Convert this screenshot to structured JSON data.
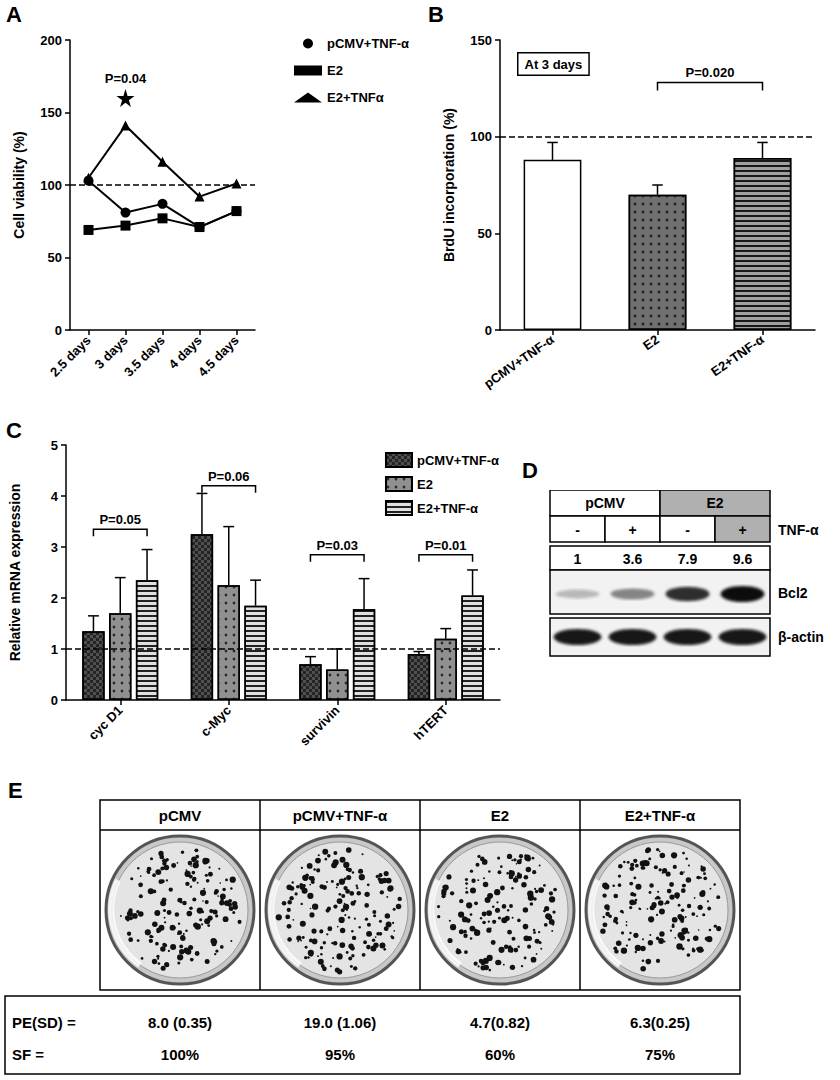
{
  "chart_data": [
    {
      "panel": "A",
      "type": "line",
      "categories": [
        "2.5 days",
        "3 days",
        "3.5 days",
        "4 days",
        "4.5 days"
      ],
      "ylabel": "Cell viability (%)",
      "ylim": [
        0,
        200
      ],
      "yticks": [
        0,
        50,
        100,
        150,
        200
      ],
      "hline": 100,
      "legend": "upper right",
      "series": [
        {
          "name": "pCMV+TNF-α",
          "color": "#000000",
          "marker": "circle",
          "values": [
            103,
            81,
            87,
            71,
            82
          ]
        },
        {
          "name": "E2",
          "color": "#000000",
          "marker": "square",
          "values": [
            69,
            72,
            77,
            71,
            82
          ]
        },
        {
          "name": "E2+TNFα",
          "color": "#000000",
          "marker": "triangle",
          "values": [
            105,
            141,
            116,
            92,
            101
          ]
        }
      ],
      "annotations": [
        {
          "text": "P=0.04",
          "x": "3 days",
          "y": 160,
          "marker": "star"
        }
      ]
    },
    {
      "panel": "B",
      "type": "bar",
      "categories": [
        "pCMV+TNF-α",
        "E2",
        "E2+TNF-α"
      ],
      "values": [
        88,
        70,
        89
      ],
      "errors": [
        9,
        5,
        8
      ],
      "colors": [
        "#ffffff",
        "#707070",
        "#a0a0a0"
      ],
      "ylabel": "BrdU incorporation (%)",
      "ylim": [
        0,
        150
      ],
      "yticks": [
        0,
        50,
        100,
        150
      ],
      "hline": 100,
      "annotations": [
        {
          "text": "At 3 days"
        }
      ],
      "brackets": [
        {
          "from": "E2",
          "to": "E2+TNF-α",
          "y": 128,
          "text": "P=0.020"
        }
      ]
    },
    {
      "panel": "C",
      "type": "bar",
      "categories": [
        "cyc D1",
        "c-Myc",
        "survivin",
        "hTERT"
      ],
      "ylabel": "Relative mRNA expression",
      "ylim": [
        0,
        5
      ],
      "yticks": [
        0,
        1,
        2,
        3,
        4,
        5
      ],
      "hline": 1,
      "legend": "upper right",
      "series": [
        {
          "name": "pCMV+TNF-α",
          "color": "#505050",
          "values": [
            1.35,
            3.25,
            0.7,
            0.9
          ],
          "errors": [
            0.3,
            0.8,
            0.15,
            0.05
          ]
        },
        {
          "name": "E2",
          "color": "#909090",
          "values": [
            1.7,
            2.25,
            0.6,
            1.2
          ],
          "errors": [
            0.7,
            1.15,
            0.4,
            0.2
          ]
        },
        {
          "name": "E2+TNF-α",
          "color": "#e0e0e0",
          "values": [
            2.35,
            1.85,
            1.78,
            2.05
          ],
          "errors": [
            0.6,
            0.5,
            0.6,
            0.5
          ]
        }
      ],
      "brackets": [
        {
          "category": "cyc D1",
          "y": 3.35,
          "text": "P=0.05"
        },
        {
          "category": "c-Myc",
          "y": 4.2,
          "text": "P=0.06"
        },
        {
          "category": "survivin",
          "y": 2.85,
          "text": "P=0.03"
        },
        {
          "category": "hTERT",
          "y": 2.85,
          "text": "P=0.01"
        }
      ]
    }
  ],
  "blot": {
    "panel": "D",
    "groups": [
      "pCMV",
      "E2"
    ],
    "treatment": "TNF-α",
    "treatment_signs": [
      "-",
      "+",
      "-",
      "+"
    ],
    "quantities": [
      1,
      3.6,
      7.9,
      9.6
    ],
    "bands": [
      "Bcl2",
      "β-actin"
    ]
  },
  "colony": {
    "panel": "E",
    "conditions": [
      "pCMV",
      "pCMV+TNF-α",
      "E2",
      "E2+TNF-α"
    ],
    "row_labels": [
      "PE(SD) =",
      "SF ="
    ],
    "pe_sd": [
      "8.0 (0.35)",
      "19.0 (1.06)",
      "4.7(0.82)",
      "6.3(0.25)"
    ],
    "sf": [
      "100%",
      "95%",
      "60%",
      "75%"
    ]
  }
}
